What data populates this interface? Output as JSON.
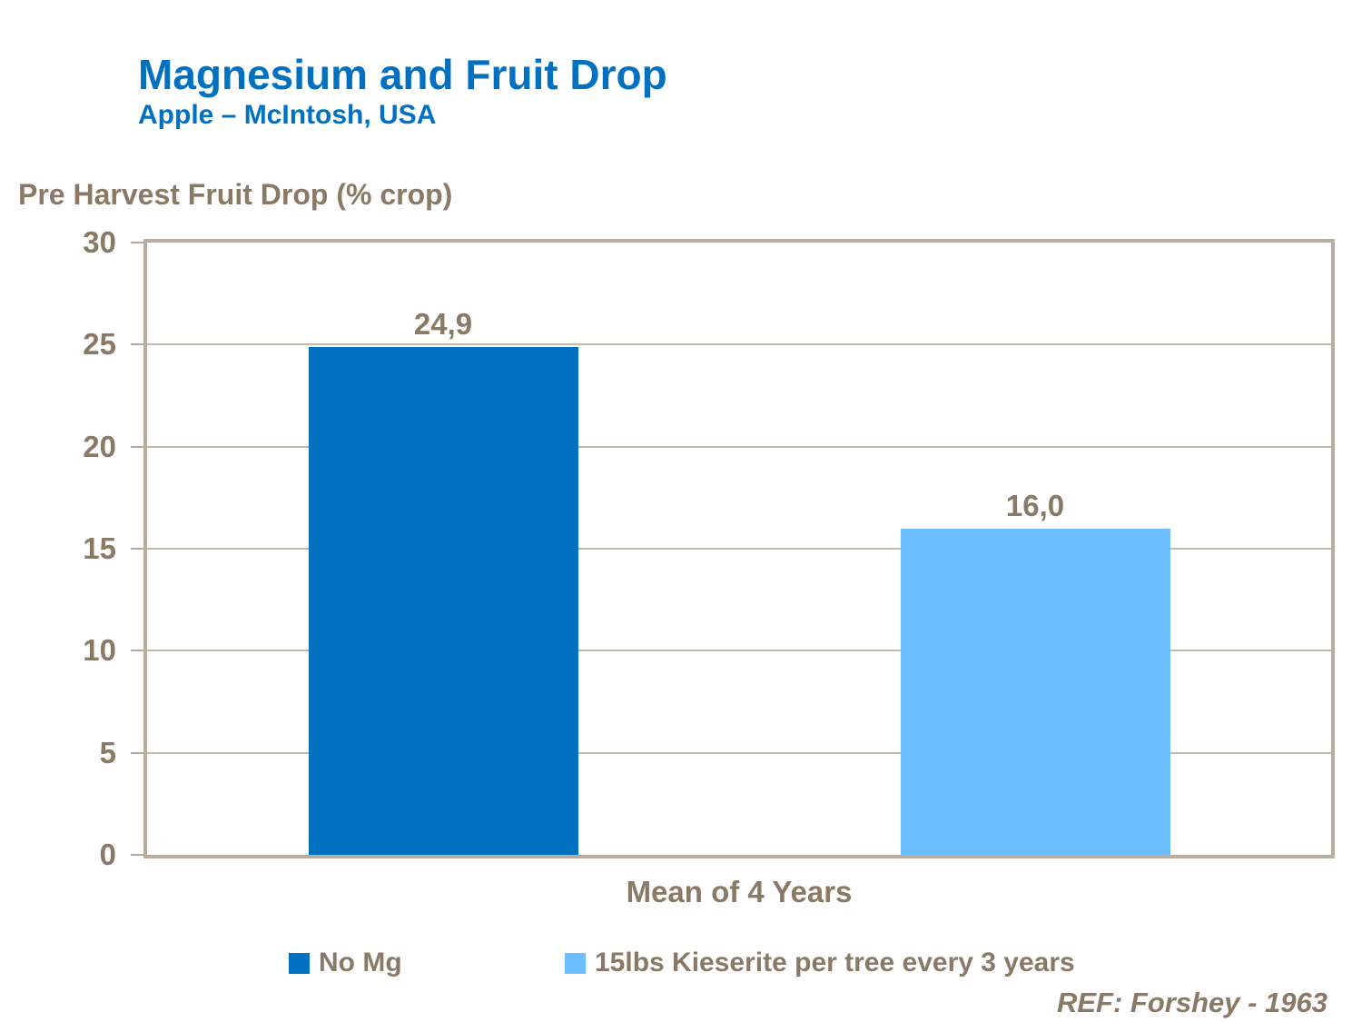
{
  "header": {
    "title": "Magnesium and Fruit Drop",
    "subtitle": "Apple – McIntosh, USA"
  },
  "footer": {
    "reference": "REF: Forshey - 1963"
  },
  "colors": {
    "title_blue": "#0070C0",
    "dark_blue_bar": "#0070C0",
    "light_blue_bar": "#6BBEFF",
    "text_brown": "#8A7A65",
    "frame_tan": "#B9ACA0",
    "gridline": "#C2B8AB"
  },
  "chart_data": {
    "type": "bar",
    "title": "Magnesium and Fruit Drop",
    "subtitle": "Apple – McIntosh, USA",
    "categories": [
      "Mean of 4 Years"
    ],
    "series": [
      {
        "name": "No Mg",
        "values": [
          24.9
        ],
        "value_labels": [
          "24,9"
        ],
        "color": "#0070C0"
      },
      {
        "name": "15lbs Kieserite per tree every 3 years",
        "values": [
          16.0
        ],
        "value_labels": [
          "16,0"
        ],
        "color": "#6BBEFF"
      }
    ],
    "xlabel": "Mean of 4 Years",
    "ylabel": "Pre Harvest Fruit Drop (% crop)",
    "ylim": [
      0,
      30
    ],
    "yticks": [
      0,
      5,
      10,
      15,
      20,
      25,
      30
    ],
    "grid": true,
    "legend_position": "bottom",
    "reference": "REF: Forshey - 1963"
  }
}
